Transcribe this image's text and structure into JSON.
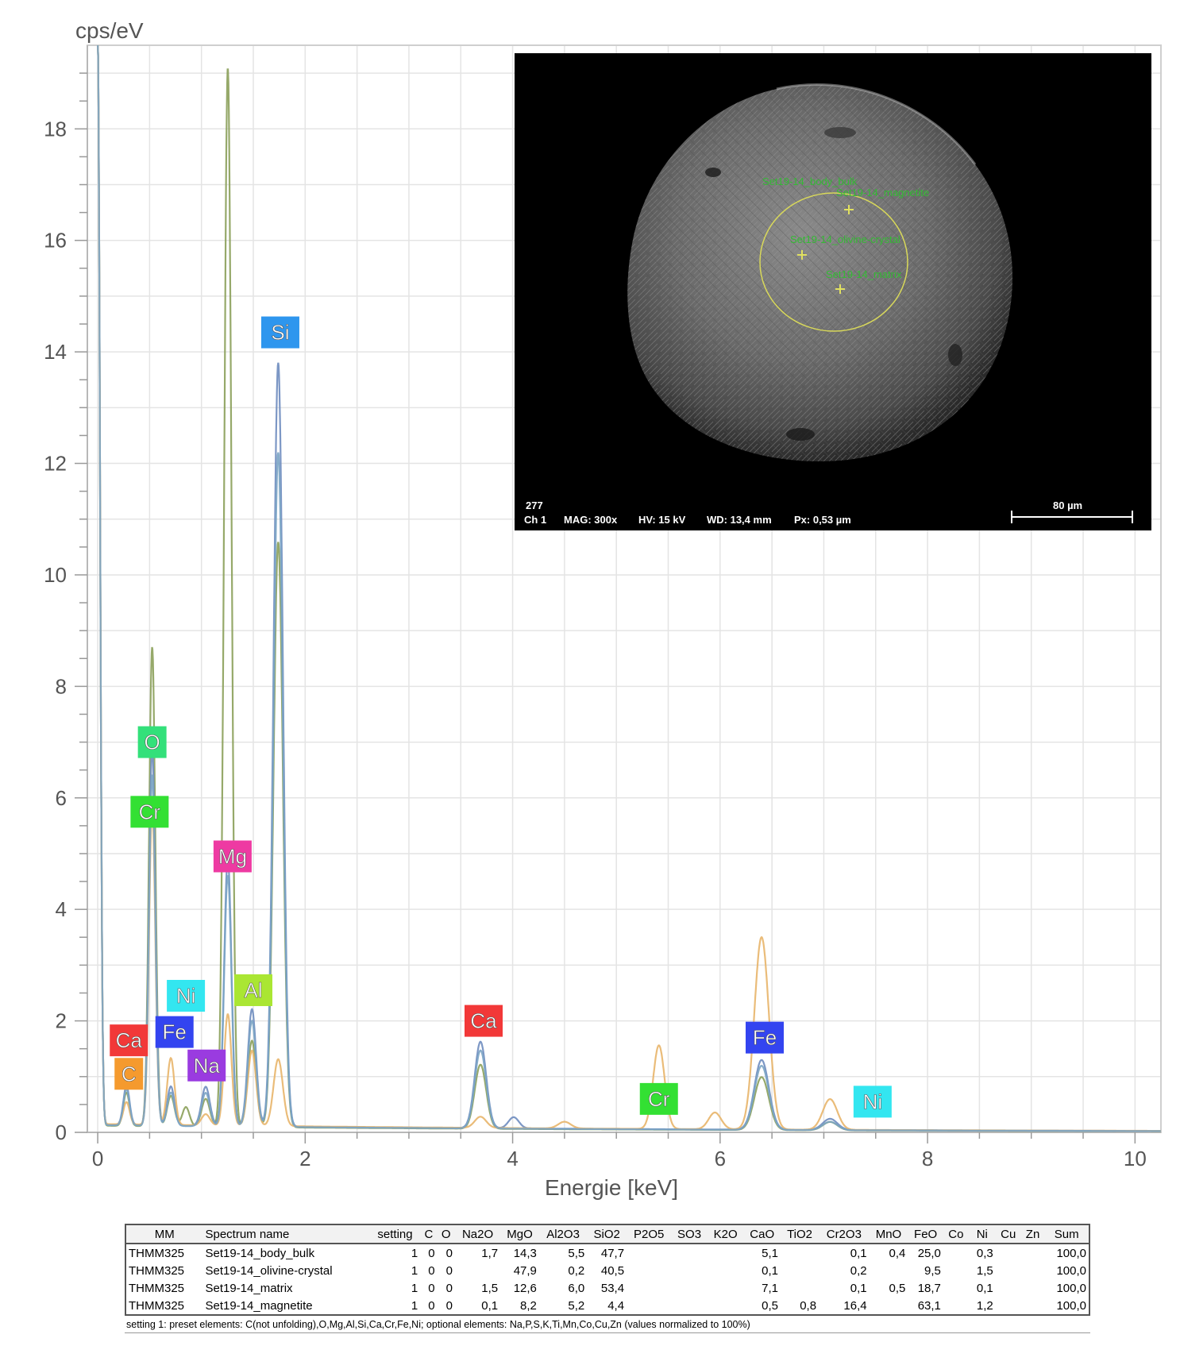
{
  "chart_data": {
    "type": "line",
    "ylabel": "cps/eV",
    "xlabel": "Energie [keV]",
    "xlim": [
      -0.1,
      10.25
    ],
    "ylim": [
      0,
      19.5
    ],
    "x_ticks": [
      0,
      2,
      4,
      6,
      8,
      10
    ],
    "y_ticks": [
      0,
      2,
      4,
      6,
      8,
      10,
      12,
      14,
      16,
      18
    ],
    "grid": true,
    "series_colors": [
      "#8ba05a",
      "#6e8cbf",
      "#e8b56a",
      "#7aa4c4"
    ],
    "series": [
      {
        "color": "#8ba05a",
        "baseline": 0.12,
        "peaks": [
          [
            0.0,
            19.5,
            0.022
          ],
          [
            0.277,
            0.6,
            0.03
          ],
          [
            0.525,
            8.6,
            0.03
          ],
          [
            0.705,
            0.55,
            0.035
          ],
          [
            0.85,
            0.35,
            0.035
          ],
          [
            1.041,
            0.5,
            0.04
          ],
          [
            1.254,
            19.0,
            0.035
          ],
          [
            1.487,
            1.55,
            0.04
          ],
          [
            1.74,
            10.5,
            0.045
          ],
          [
            3.69,
            1.15,
            0.055
          ],
          [
            6.4,
            0.95,
            0.07
          ],
          [
            7.06,
            0.15,
            0.07
          ]
        ]
      },
      {
        "color": "#6e8cbf",
        "baseline": 0.14,
        "peaks": [
          [
            0.0,
            19.5,
            0.022
          ],
          [
            0.277,
            0.7,
            0.03
          ],
          [
            0.525,
            6.8,
            0.03
          ],
          [
            0.705,
            0.7,
            0.035
          ],
          [
            1.041,
            0.7,
            0.04
          ],
          [
            1.254,
            4.8,
            0.035
          ],
          [
            1.487,
            2.1,
            0.04
          ],
          [
            1.74,
            13.7,
            0.045
          ],
          [
            3.69,
            1.55,
            0.055
          ],
          [
            4.01,
            0.2,
            0.05
          ],
          [
            6.4,
            1.25,
            0.07
          ],
          [
            7.06,
            0.2,
            0.07
          ]
        ]
      },
      {
        "color": "#e8b56a",
        "baseline": 0.15,
        "peaks": [
          [
            0.0,
            19.5,
            0.022
          ],
          [
            0.277,
            0.4,
            0.03
          ],
          [
            0.525,
            5.7,
            0.03
          ],
          [
            0.705,
            1.2,
            0.035
          ],
          [
            1.041,
            0.2,
            0.04
          ],
          [
            1.254,
            2.0,
            0.035
          ],
          [
            1.487,
            1.35,
            0.04
          ],
          [
            1.74,
            1.2,
            0.045
          ],
          [
            3.69,
            0.2,
            0.055
          ],
          [
            4.5,
            0.12,
            0.06
          ],
          [
            5.41,
            1.5,
            0.055
          ],
          [
            5.95,
            0.3,
            0.06
          ],
          [
            6.4,
            3.45,
            0.07
          ],
          [
            7.06,
            0.55,
            0.07
          ]
        ]
      },
      {
        "color": "#7aa4c4",
        "baseline": 0.13,
        "peaks": [
          [
            0.0,
            19.5,
            0.022
          ],
          [
            0.277,
            0.65,
            0.03
          ],
          [
            0.525,
            6.3,
            0.03
          ],
          [
            0.705,
            0.6,
            0.035
          ],
          [
            1.041,
            0.6,
            0.04
          ],
          [
            1.254,
            4.5,
            0.035
          ],
          [
            1.487,
            1.9,
            0.04
          ],
          [
            1.74,
            12.1,
            0.045
          ],
          [
            3.69,
            1.4,
            0.055
          ],
          [
            6.4,
            1.15,
            0.07
          ],
          [
            7.06,
            0.15,
            0.07
          ]
        ]
      }
    ],
    "element_labels": [
      {
        "text": "Si",
        "x": 1.76,
        "y": 14.35,
        "color": "#2e96ee"
      },
      {
        "text": "O",
        "x": 0.525,
        "y": 7.0,
        "color": "#33e07a"
      },
      {
        "text": "Cr",
        "x": 0.5,
        "y": 5.75,
        "color": "#33e033"
      },
      {
        "text": "Mg",
        "x": 1.3,
        "y": 4.95,
        "color": "#ee3aa2"
      },
      {
        "text": "Al",
        "x": 1.5,
        "y": 2.55,
        "color": "#aae633"
      },
      {
        "text": "Ni",
        "x": 0.85,
        "y": 2.45,
        "color": "#33e6f0"
      },
      {
        "text": "Fe",
        "x": 0.74,
        "y": 1.8,
        "color": "#3344f0"
      },
      {
        "text": "Ca",
        "x": 0.3,
        "y": 1.65,
        "color": "#f23838"
      },
      {
        "text": "Na",
        "x": 1.05,
        "y": 1.2,
        "color": "#9a3be0"
      },
      {
        "text": "C",
        "x": 0.3,
        "y": 1.05,
        "color": "#f59a2e"
      },
      {
        "text": "Ca",
        "x": 3.72,
        "y": 2.0,
        "color": "#f23838"
      },
      {
        "text": "Fe",
        "x": 6.43,
        "y": 1.7,
        "color": "#3344f0"
      },
      {
        "text": "Cr",
        "x": 5.41,
        "y": 0.6,
        "color": "#33e033"
      },
      {
        "text": "Ni",
        "x": 7.47,
        "y": 0.55,
        "color": "#33e6f0"
      }
    ]
  },
  "sem_image": {
    "id_number": "277",
    "channel": "Ch 1",
    "magnification": "MAG: 300x",
    "high_voltage": "HV: 15 kV",
    "working_distance": "WD: 13,4 mm",
    "pixel_size": "Px: 0,53 µm",
    "scale_bar": "80 µm",
    "spot_labels": [
      "Set19-14_body_bulk",
      "Set19-14_magnetite",
      "Set19-14_olivine-crystal",
      "Set19-14_matrix"
    ]
  },
  "table": {
    "headers": [
      "MM",
      "Spectrum name",
      "setting",
      "C",
      "O",
      "Na2O",
      "MgO",
      "Al2O3",
      "SiO2",
      "P2O5",
      "SO3",
      "K2O",
      "CaO",
      "TiO2",
      "Cr2O3",
      "MnO",
      "FeO",
      "Co",
      "Ni",
      "Cu",
      "Zn",
      "Sum"
    ],
    "rows": [
      [
        "THMM325",
        "Set19-14_body_bulk",
        "1",
        "0",
        "0",
        "1,7",
        "14,3",
        "5,5",
        "47,7",
        "",
        "",
        "",
        "5,1",
        "",
        "0,1",
        "0,4",
        "25,0",
        "",
        "0,3",
        "",
        "",
        "100,0"
      ],
      [
        "THMM325",
        "Set19-14_olivine-crystal",
        "1",
        "0",
        "0",
        "",
        "47,9",
        "0,2",
        "40,5",
        "",
        "",
        "",
        "0,1",
        "",
        "0,2",
        "",
        "9,5",
        "",
        "1,5",
        "",
        "",
        "100,0"
      ],
      [
        "THMM325",
        "Set19-14_matrix",
        "1",
        "0",
        "0",
        "1,5",
        "12,6",
        "6,0",
        "53,4",
        "",
        "",
        "",
        "7,1",
        "",
        "0,1",
        "0,5",
        "18,7",
        "",
        "0,1",
        "",
        "",
        "100,0"
      ],
      [
        "THMM325",
        "Set19-14_magnetite",
        "1",
        "0",
        "0",
        "0,1",
        "8,2",
        "5,2",
        "4,4",
        "",
        "",
        "",
        "0,5",
        "0,8",
        "16,4",
        "",
        "63,1",
        "",
        "1,2",
        "",
        "",
        "100,0"
      ]
    ],
    "note": "setting 1: preset elements: C(not unfolding),O,Mg,Al,Si,Ca,Cr,Fe,Ni; optional elements: Na,P,S,K,Ti,Mn,Co,Cu,Zn (values normalized to 100%)"
  }
}
